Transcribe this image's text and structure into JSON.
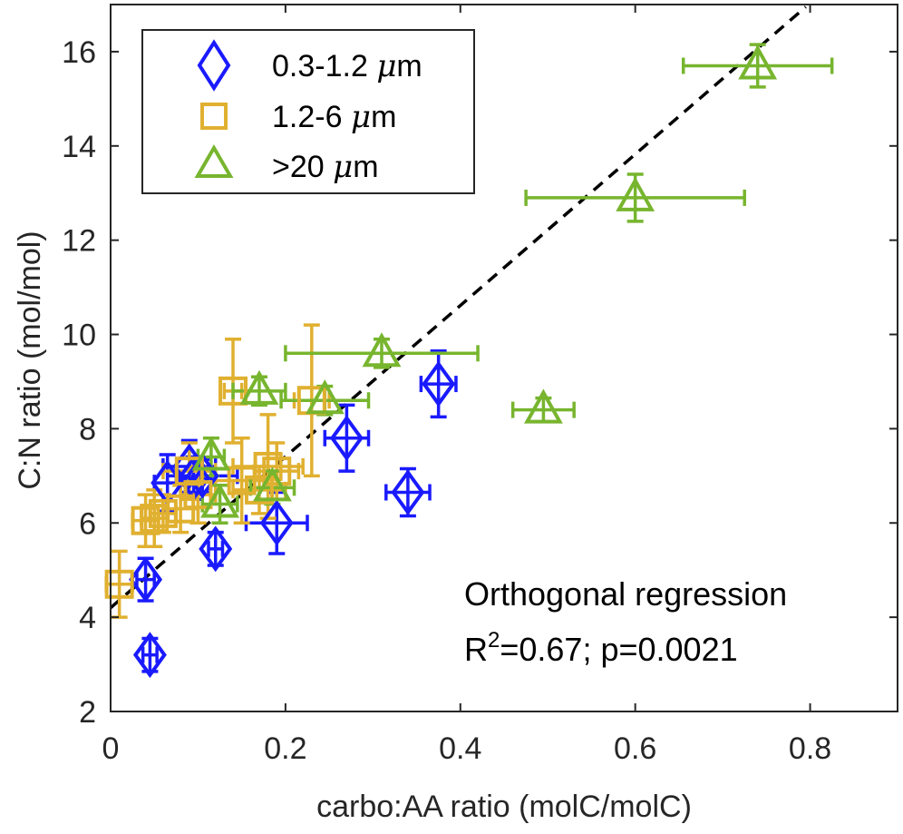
{
  "chart_data": {
    "type": "scatter",
    "xlabel": "carbo:AA ratio (molC/molC)",
    "ylabel": "C:N ratio (mol/mol)",
    "xlim": [
      0,
      0.9
    ],
    "ylim": [
      2,
      17
    ],
    "x_ticks": [
      0,
      0.2,
      0.4,
      0.6,
      0.8
    ],
    "x_tick_labels": [
      "0",
      "0.2",
      "0.4",
      "0.6",
      "0.8"
    ],
    "y_ticks": [
      2,
      4,
      6,
      8,
      10,
      12,
      14,
      16
    ],
    "y_tick_labels": [
      "2",
      "4",
      "6",
      "8",
      "10",
      "12",
      "14",
      "16"
    ],
    "grid": false,
    "legend_position": "top-left",
    "colors": {
      "blue": "#1a1aff",
      "orange": "#e0b030",
      "green": "#77b52e",
      "axis": "#262626"
    },
    "series": [
      {
        "name": "0.3-1.2 μm",
        "name_prefix": "0.3-1.2 ",
        "name_unit_mu": "μ",
        "name_unit_m": "m",
        "marker": "diamond",
        "color": "#1a1aff",
        "points": [
          {
            "x": 0.045,
            "y": 3.2,
            "xerr": 0.008,
            "yerr": 0.35
          },
          {
            "x": 0.04,
            "y": 4.8,
            "xerr": 0.01,
            "yerr": 0.45
          },
          {
            "x": 0.12,
            "y": 5.45,
            "xerr": 0.008,
            "yerr": 0.35
          },
          {
            "x": 0.19,
            "y": 6.0,
            "xerr": 0.035,
            "yerr": 0.65
          },
          {
            "x": 0.065,
            "y": 6.85,
            "xerr": 0.015,
            "yerr": 0.6
          },
          {
            "x": 0.09,
            "y": 7.2,
            "xerr": 0.03,
            "yerr": 0.55
          },
          {
            "x": 0.095,
            "y": 6.95,
            "xerr": 0.02,
            "yerr": 0.45
          },
          {
            "x": 0.105,
            "y": 7.0,
            "xerr": 0.04,
            "yerr": 0.35
          },
          {
            "x": 0.27,
            "y": 7.8,
            "xerr": 0.025,
            "yerr": 0.7
          },
          {
            "x": 0.34,
            "y": 6.65,
            "xerr": 0.025,
            "yerr": 0.5
          },
          {
            "x": 0.375,
            "y": 8.95,
            "xerr": 0.02,
            "yerr": 0.7
          }
        ]
      },
      {
        "name": "1.2-6 μm",
        "name_prefix": "1.2-6 ",
        "name_unit_mu": "μ",
        "name_unit_m": "m",
        "marker": "square",
        "color": "#e0b030",
        "points": [
          {
            "x": 0.01,
            "y": 4.7,
            "xerr": 0.015,
            "yerr": 0.7
          },
          {
            "x": 0.04,
            "y": 6.05,
            "xerr": 0.015,
            "yerr": 0.55
          },
          {
            "x": 0.05,
            "y": 6.1,
            "xerr": 0.015,
            "yerr": 0.6
          },
          {
            "x": 0.06,
            "y": 6.2,
            "xerr": 0.015,
            "yerr": 0.4
          },
          {
            "x": 0.08,
            "y": 6.3,
            "xerr": 0.02,
            "yerr": 0.5
          },
          {
            "x": 0.1,
            "y": 6.6,
            "xerr": 0.02,
            "yerr": 0.6
          },
          {
            "x": 0.09,
            "y": 7.1,
            "xerr": 0.03,
            "yerr": 0.6
          },
          {
            "x": 0.14,
            "y": 8.8,
            "xerr": 0.01,
            "yerr": 1.1
          },
          {
            "x": 0.15,
            "y": 6.9,
            "xerr": 0.03,
            "yerr": 0.9
          },
          {
            "x": 0.17,
            "y": 6.7,
            "xerr": 0.03,
            "yerr": 0.5
          },
          {
            "x": 0.18,
            "y": 7.2,
            "xerr": 0.04,
            "yerr": 1.1
          },
          {
            "x": 0.19,
            "y": 7.1,
            "xerr": 0.025,
            "yerr": 0.6
          },
          {
            "x": 0.23,
            "y": 8.6,
            "xerr": 0.02,
            "yerr": 1.6
          }
        ]
      },
      {
        "name": ">20 μm",
        "name_prefix": ">20 ",
        "name_unit_mu": "μ",
        "name_unit_m": "m",
        "marker": "triangle",
        "color": "#77b52e",
        "points": [
          {
            "x": 0.115,
            "y": 7.4,
            "xerr": 0.015,
            "yerr": 0.4
          },
          {
            "x": 0.125,
            "y": 6.4,
            "xerr": 0.02,
            "yerr": 0.4
          },
          {
            "x": 0.17,
            "y": 8.8,
            "xerr": 0.03,
            "yerr": 0.3
          },
          {
            "x": 0.185,
            "y": 6.75,
            "xerr": 0.025,
            "yerr": 0.35
          },
          {
            "x": 0.245,
            "y": 8.6,
            "xerr": 0.05,
            "yerr": 0.3
          },
          {
            "x": 0.31,
            "y": 9.6,
            "xerr": 0.11,
            "yerr": 0.3
          },
          {
            "x": 0.495,
            "y": 8.4,
            "xerr": 0.035,
            "yerr": 0.25
          },
          {
            "x": 0.6,
            "y": 12.9,
            "xerr": 0.125,
            "yerr": 0.5
          },
          {
            "x": 0.74,
            "y": 15.7,
            "xerr": 0.085,
            "yerr": 0.45
          }
        ]
      }
    ],
    "regression_line": {
      "style": "dashed",
      "color": "#000000",
      "x": [
        0.0,
        0.795
      ],
      "y": [
        4.2,
        16.95
      ]
    },
    "annotation": {
      "line1": "Orthogonal regression",
      "r2_prefix": "R",
      "r2_sup": "2",
      "r2_rest": "=0.67; p=0.0021"
    }
  }
}
